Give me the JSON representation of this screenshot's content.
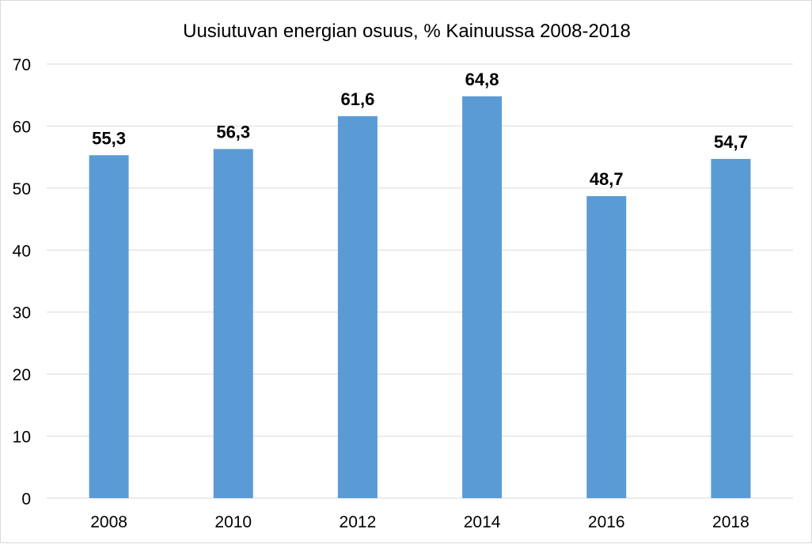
{
  "chart_data": {
    "type": "bar",
    "title": "Uusiutuvan energian osuus, % Kainuussa 2008-2018",
    "xlabel": "",
    "ylabel": "",
    "categories": [
      "2008",
      "2010",
      "2012",
      "2014",
      "2016",
      "2018"
    ],
    "values": [
      55.3,
      56.3,
      61.6,
      64.8,
      48.7,
      54.7
    ],
    "data_labels": [
      "55,3",
      "56,3",
      "61,6",
      "64,8",
      "48,7",
      "54,7"
    ],
    "ylim": [
      0,
      70
    ],
    "yticks": [
      0,
      10,
      20,
      30,
      40,
      50,
      60,
      70
    ],
    "grid": true,
    "legend": "none",
    "colors": {
      "bar": "#5B9BD5",
      "grid": "#D9D9D9",
      "text": "#000000"
    }
  }
}
